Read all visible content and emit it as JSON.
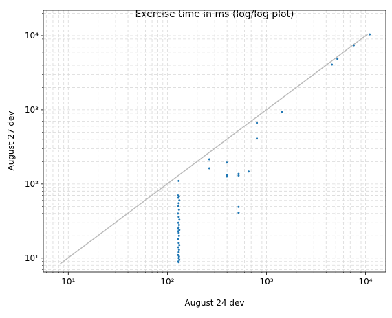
{
  "chart_data": {
    "type": "scatter",
    "title": "Exercise time in ms (log/log plot)",
    "x_label": "August 24 dev",
    "y_label": "August 27 dev",
    "xlog": true,
    "ylog": true,
    "grid": true,
    "xlim": [
      5.6,
      16000
    ],
    "ylim": [
      6.5,
      22000
    ],
    "xticks": [
      {
        "value": 10,
        "label": "10¹"
      },
      {
        "value": 100,
        "label": "10²"
      },
      {
        "value": 1000,
        "label": "10³"
      },
      {
        "value": 10000,
        "label": "10⁴"
      }
    ],
    "yticks": [
      {
        "value": 10,
        "label": "10¹"
      },
      {
        "value": 100,
        "label": "10²"
      },
      {
        "value": 1000,
        "label": "10³"
      },
      {
        "value": 10000,
        "label": "10⁴"
      }
    ],
    "xminor_ticks": [
      6,
      7,
      8,
      9,
      20,
      30,
      40,
      50,
      60,
      70,
      80,
      90,
      200,
      300,
      400,
      500,
      600,
      700,
      800,
      900,
      2000,
      3000,
      4000,
      5000,
      6000,
      7000,
      8000,
      9000
    ],
    "yminor_ticks": [
      7,
      8,
      9,
      20,
      30,
      40,
      50,
      60,
      70,
      80,
      90,
      200,
      300,
      400,
      500,
      600,
      700,
      800,
      900,
      2000,
      3000,
      4000,
      5000,
      6000,
      7000,
      8000,
      9000,
      20000
    ],
    "series": [
      {
        "type": "line",
        "color": "#bbbbbb",
        "x": [
          8.3,
          10500
        ],
        "values": [
          8.4,
          10500
        ]
      },
      {
        "type": "scatter",
        "color": "#1f77b4",
        "x": [
          130,
          265,
          265,
          398,
          398,
          398,
          523,
          523,
          660,
          523,
          523,
          800,
          800,
          1440,
          4570,
          5200,
          7600,
          11000,
          128,
          131,
          129,
          132,
          130,
          129,
          131,
          128,
          130,
          132,
          129,
          131,
          130,
          128,
          132,
          129,
          130,
          131,
          128,
          130,
          132,
          129,
          131,
          130,
          128,
          131,
          130,
          132,
          129,
          130
        ],
        "values": [
          110,
          215,
          163,
          194,
          132,
          126,
          137,
          130,
          147,
          49,
          41,
          665,
          410,
          935,
          4080,
          4870,
          7400,
          10400,
          70,
          68,
          65,
          60,
          55,
          50,
          45,
          40,
          36,
          33,
          30,
          28,
          26,
          25,
          24,
          23,
          22,
          20,
          18,
          16,
          15,
          14,
          13,
          12,
          11,
          10.5,
          10,
          9.5,
          9,
          8.8
        ]
      }
    ]
  }
}
